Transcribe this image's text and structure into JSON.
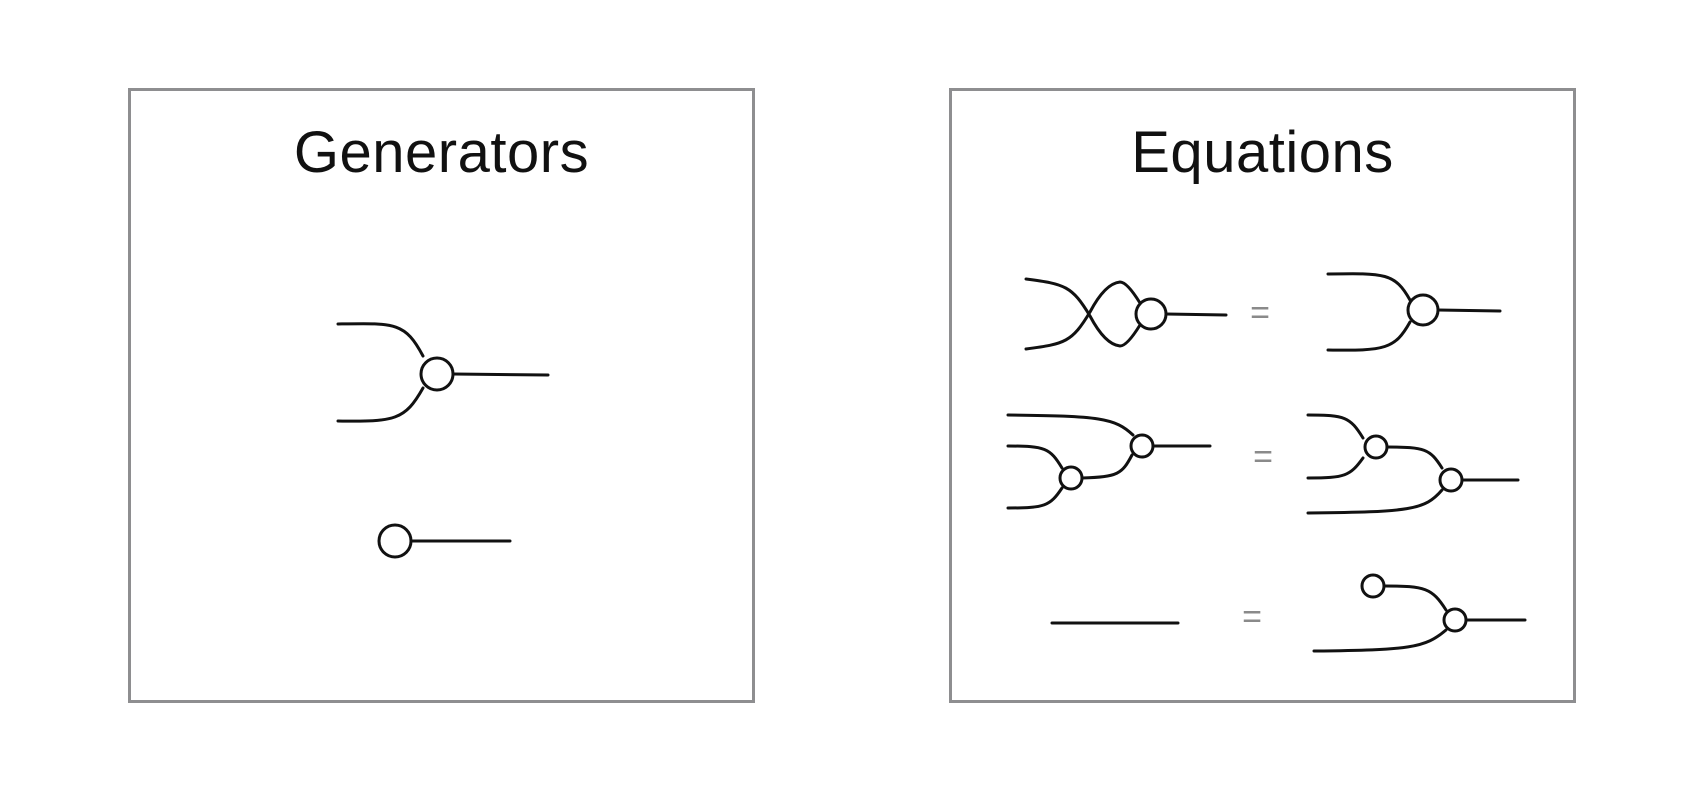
{
  "generators": {
    "title": "Generators"
  },
  "equations": {
    "title": "Equations",
    "rows": [
      {
        "equals": "="
      },
      {
        "equals": "="
      },
      {
        "equals": "="
      }
    ]
  },
  "colors": {
    "border": "#8e8e90",
    "stroke": "#111111",
    "equals": "#8a8a8a"
  }
}
